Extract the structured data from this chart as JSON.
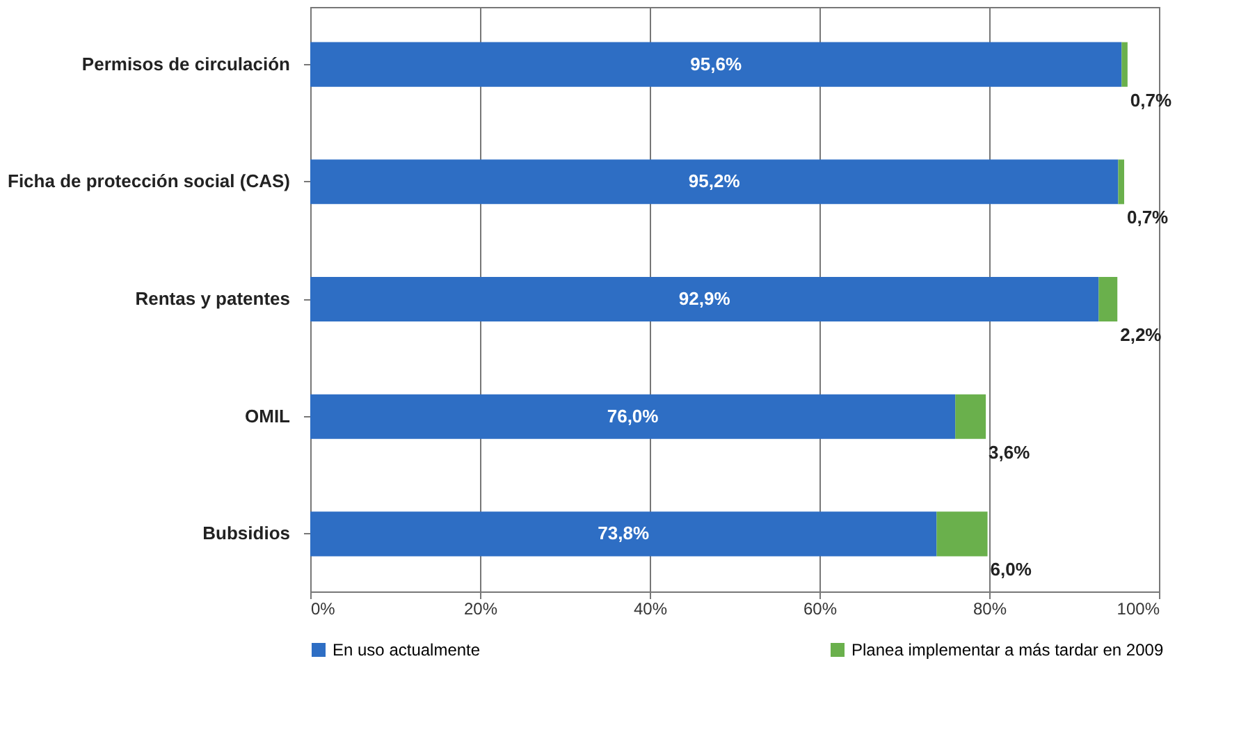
{
  "chart_data": {
    "type": "bar",
    "orientation": "horizontal",
    "stacked": true,
    "categories": [
      "Permisos de circulación",
      "Ficha de protección social (CAS)",
      "Rentas y patentes",
      "OMIL",
      "Bubsidios"
    ],
    "series": [
      {
        "name": "En uso actualmente",
        "color": "#2e6ec4",
        "values": [
          95.6,
          95.2,
          92.9,
          76.0,
          73.8
        ],
        "value_labels": [
          "95,6%",
          "95,2%",
          "92,9%",
          "76,0%",
          "73,8%"
        ]
      },
      {
        "name": "Planea implementar a más tardar en 2009",
        "color": "#6ab04c",
        "values": [
          0.7,
          0.7,
          2.2,
          3.6,
          6.0
        ],
        "value_labels": [
          "0,7%",
          "0,7%",
          "2,2%",
          "3,6%",
          "6,0%"
        ]
      }
    ],
    "xlim": [
      0,
      100
    ],
    "xticks": [
      {
        "value": 0,
        "label": "0%"
      },
      {
        "value": 20,
        "label": "20%"
      },
      {
        "value": 40,
        "label": "40%"
      },
      {
        "value": 60,
        "label": "60%"
      },
      {
        "value": 80,
        "label": "80%"
      },
      {
        "value": 100,
        "label": "100%"
      }
    ],
    "grid": "x",
    "legend": "bottom"
  }
}
